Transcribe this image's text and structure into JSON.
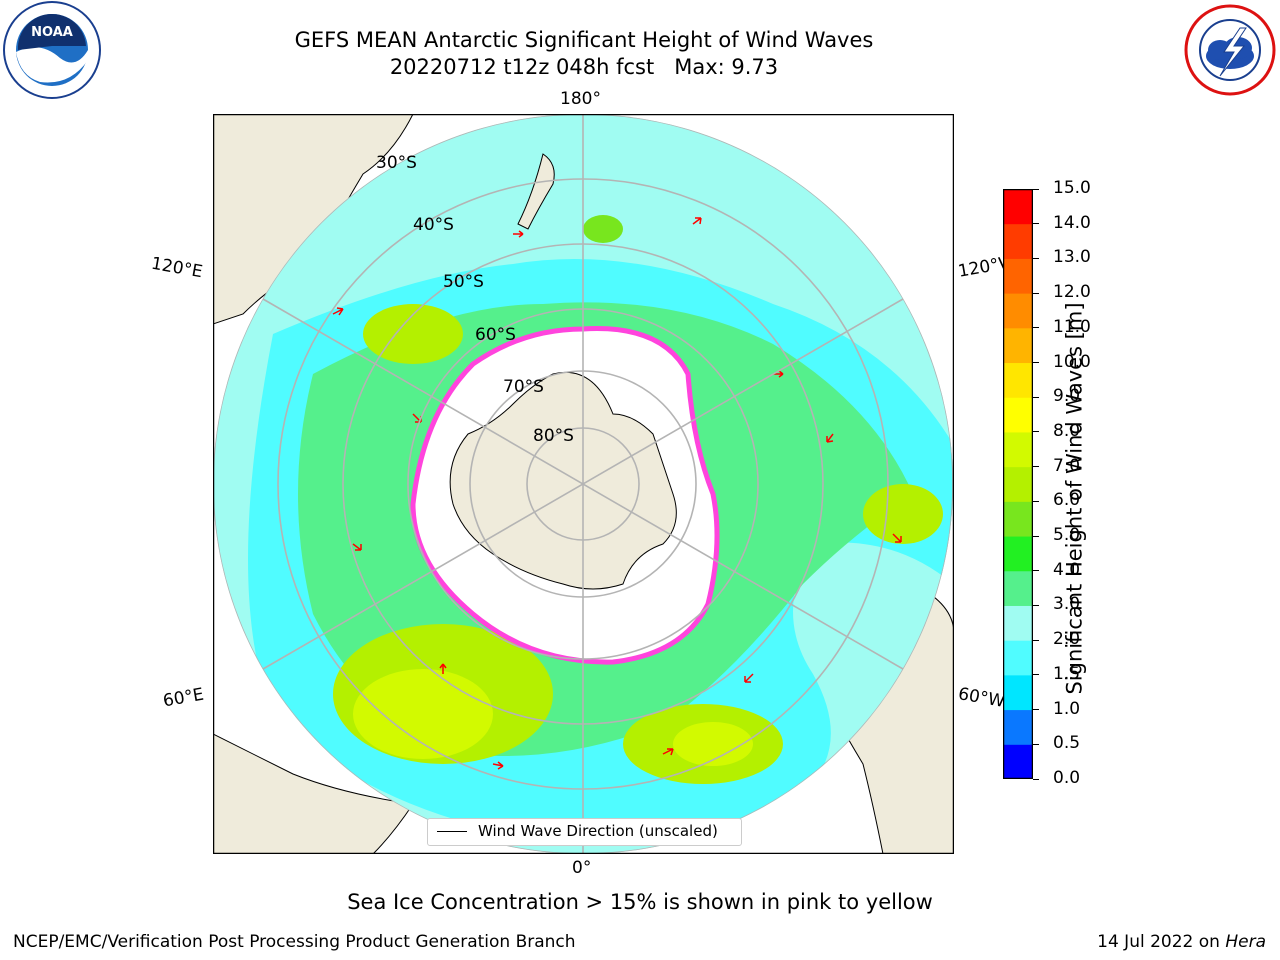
{
  "header": {
    "title_line1": "GEFS MEAN Antarctic Significant Height of Wind Waves",
    "title_line2": "20220712 t12z 048h fcst   Max: 9.73"
  },
  "logos": {
    "left": "noaa-logo",
    "left_text": "NOAA",
    "right": "nws-logo"
  },
  "map": {
    "projection": "south-polar-stereographic",
    "meridian_labels": {
      "top": "180°",
      "bottom": "0°",
      "upper_left": "120°E",
      "upper_right": "120°W",
      "lower_left": "60°E",
      "lower_right": "60°W"
    },
    "parallel_labels": [
      "30°S",
      "40°S",
      "50°S",
      "60°S",
      "70°S",
      "80°S"
    ],
    "legend": {
      "text": "Wind Wave Direction (unscaled)"
    },
    "colors": {
      "land": "#efebdb",
      "grid": "#b4b4b4",
      "arrow": "#ff0000",
      "ice_pink": "#ff44dd",
      "ice_yellow": "#ffcc00"
    }
  },
  "colorbar": {
    "label": "Significant Height of Wind Waves [m]",
    "ticks": [
      "0.0",
      "0.5",
      "1.0",
      "1.5",
      "2.0",
      "3.0",
      "4.0",
      "5.0",
      "6.0",
      "7.0",
      "8.0",
      "9.0",
      "10.0",
      "11.0",
      "12.0",
      "13.0",
      "14.0",
      "15.0"
    ],
    "colors": [
      "#0000ff",
      "#0a78ff",
      "#00e6ff",
      "#50fcff",
      "#a0fcf2",
      "#55f08c",
      "#22f022",
      "#78e61e",
      "#b4f000",
      "#d2fa00",
      "#ffff00",
      "#ffe600",
      "#ffb400",
      "#ff8c00",
      "#ff6400",
      "#ff3c00",
      "#ff0000"
    ]
  },
  "footer": {
    "ice_note": "Sea Ice Concentration > 15% is shown in pink to yellow",
    "left": "NCEP/EMC/Verification Post Processing Product Generation Branch",
    "right_date": "14 Jul 2022 on ",
    "right_host": "Hera"
  }
}
